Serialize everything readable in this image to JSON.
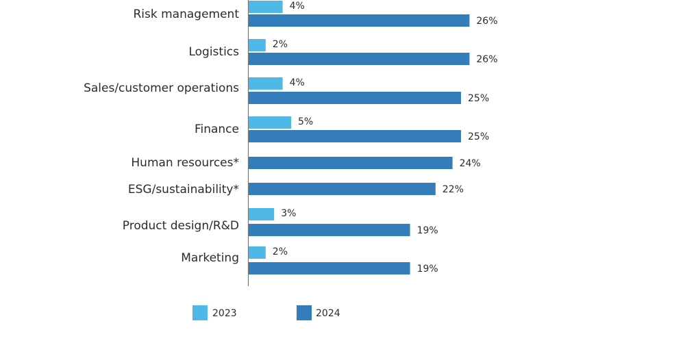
{
  "chart_data": {
    "type": "bar",
    "orientation": "horizontal",
    "categories": [
      "Risk management",
      "Logistics",
      "Sales/customer operations",
      "Finance",
      "Human resources*",
      "ESG/sustainability*",
      "Product design/R&D",
      "Marketing"
    ],
    "series": [
      {
        "name": "2023",
        "color": "#4fb8e6",
        "values": [
          4,
          2,
          4,
          5,
          null,
          null,
          3,
          2
        ],
        "labels": [
          "4%",
          "2%",
          "4%",
          "5%",
          "",
          "",
          "3%",
          "2%"
        ]
      },
      {
        "name": "2024",
        "color": "#347dbb",
        "values": [
          26,
          26,
          25,
          25,
          24,
          22,
          19,
          19
        ],
        "labels": [
          "26%",
          "26%",
          "25%",
          "25%",
          "24%",
          "22%",
          "19%",
          "19%"
        ]
      }
    ],
    "unit": "%",
    "legend_position": "bottom",
    "grid": false
  }
}
